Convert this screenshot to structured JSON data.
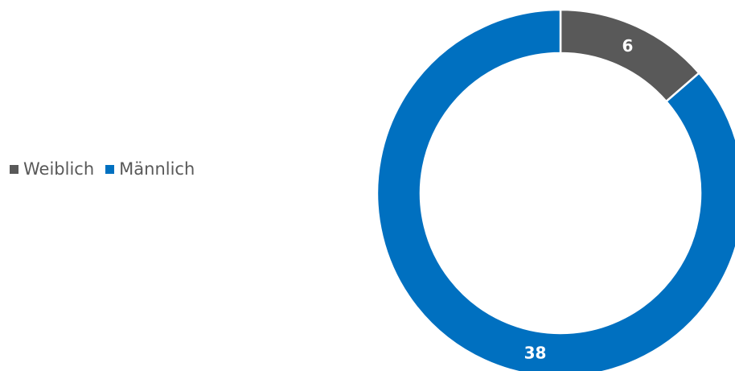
{
  "chart_data": {
    "type": "pie",
    "variant": "donut",
    "categories": [
      "Weiblich",
      "Männlich"
    ],
    "values": [
      6,
      38
    ],
    "colors": [
      "#595959",
      "#0070c0"
    ],
    "data_labels": [
      "6",
      "38"
    ],
    "legend_position": "left",
    "title": ""
  }
}
